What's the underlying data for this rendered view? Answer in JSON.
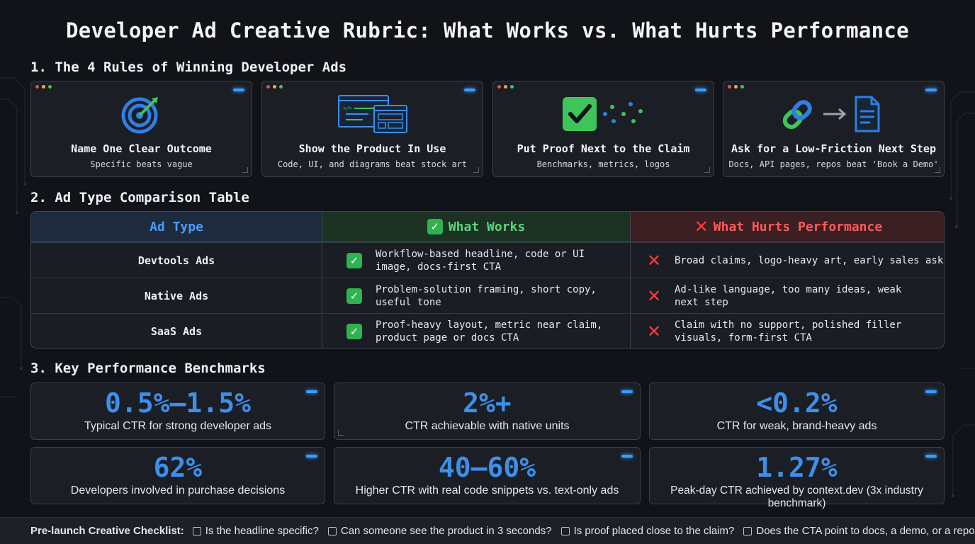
{
  "title": "Developer Ad Creative Rubric: What Works vs. What Hurts Performance",
  "sections": {
    "rules": "1. The 4 Rules of Winning Developer Ads",
    "table": "2. Ad Type Comparison Table",
    "benchmarks": "3. Key Performance Benchmarks"
  },
  "rules": [
    {
      "title": "Name One Clear Outcome",
      "subtitle": "Specific beats vague",
      "icon": "target-icon"
    },
    {
      "title": "Show the Product In Use",
      "subtitle": "Code, UI, and diagrams beat stock art",
      "icon": "code-window-icon"
    },
    {
      "title": "Put Proof Next to the Claim",
      "subtitle": "Benchmarks, metrics, logos",
      "icon": "checkmark-icon"
    },
    {
      "title": "Ask for a Low-Friction Next Step",
      "subtitle": "Docs, API pages, repos beat 'Book a Demo'",
      "icon": "link-to-document-icon"
    }
  ],
  "table": {
    "headers": {
      "type": "Ad Type",
      "works": "What Works",
      "hurts": "What Hurts Performance"
    },
    "rows": [
      {
        "type": "Devtools Ads",
        "works": [
          "Workflow-based headline, code or UI",
          "image, docs-first CTA"
        ],
        "hurts": [
          "Broad claims, logo-heavy art, early sales ask"
        ]
      },
      {
        "type": "Native Ads",
        "works": [
          "Problem-solution framing, short copy,",
          "useful tone"
        ],
        "hurts": [
          "Ad-like language, too many ideas, weak",
          "next step"
        ]
      },
      {
        "type": "SaaS Ads",
        "works": [
          "Proof-heavy layout, metric near claim,",
          "product page or docs CTA"
        ],
        "hurts": [
          "Claim with no support, polished filler",
          "visuals, form-first CTA"
        ]
      }
    ]
  },
  "benchmarks": [
    {
      "value": "0.5%–1.5%",
      "label": "Typical CTR for strong developer ads"
    },
    {
      "value": "2%+",
      "label": "CTR achievable with native units"
    },
    {
      "value": "<0.2%",
      "label": "CTR for weak, brand-heavy ads"
    },
    {
      "value": "62%",
      "label": "Developers involved in purchase decisions"
    },
    {
      "value": "40–60%",
      "label": "Higher CTR with real code snippets vs. text-only ads"
    },
    {
      "value": "1.27%",
      "label": "Peak-day CTR achieved by context.dev (3x industry benchmark)"
    }
  ],
  "checklist": {
    "title": "Pre-launch Creative Checklist:",
    "items": [
      "Is the headline specific?",
      "Can someone see the product in 3 seconds?",
      "Is proof placed close to the claim?",
      "Does the CTA point to docs, a demo, or a repo?"
    ]
  },
  "colors": {
    "background": "#111318",
    "accent_blue": "#3d8fe8",
    "works_green": "#5ed47a",
    "hurts_red": "#ff5b5b"
  }
}
